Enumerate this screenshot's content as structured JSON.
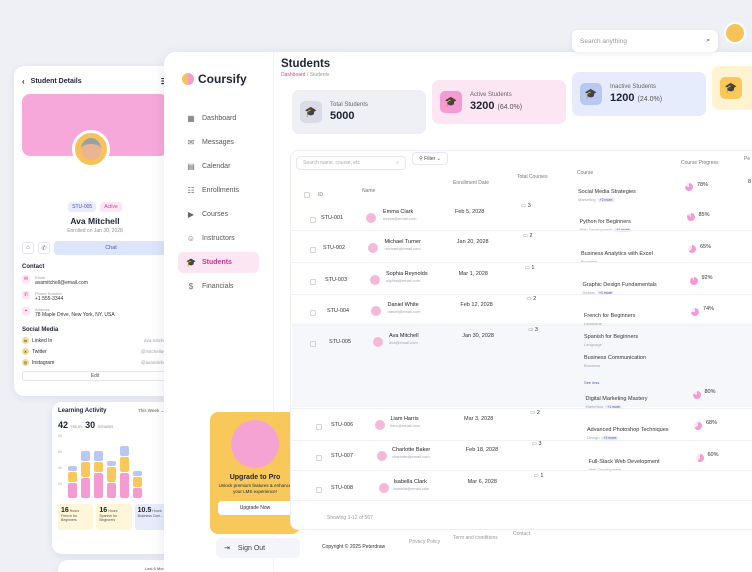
{
  "details": {
    "title": "Student Details",
    "badge_id": "STU-005",
    "badge_status": "Active",
    "name": "Ava Mitchell",
    "enrolled": "Enrolled on Jan 30, 2028",
    "chat": "Chat",
    "contact_title": "Contact",
    "contact": [
      {
        "label": "Email",
        "value": "avamitchell@email.com"
      },
      {
        "label": "Phone Number",
        "value": "+1 555-3344"
      },
      {
        "label": "Address",
        "value": "78 Maple Drive, New York, NY, USA"
      }
    ],
    "social_title": "Social Media",
    "social": [
      {
        "name": "Linked In",
        "handle": "ava-mitchell"
      },
      {
        "name": "Twitter",
        "handle": "@mitchellava"
      },
      {
        "name": "Instagram",
        "handle": "@avamitchell"
      }
    ],
    "edit": "Edit"
  },
  "activity": {
    "title": "Learning Activity",
    "period": "This Week",
    "hours": "42",
    "hours_unit": "Hours",
    "minutes": "30",
    "minutes_unit": "minutes",
    "yticks": [
      "8h",
      "6h",
      "4h",
      "2h"
    ],
    "bars": [
      [
        3,
        2,
        1
      ],
      [
        4,
        3,
        2
      ],
      [
        5,
        2,
        2
      ],
      [
        3,
        3,
        1
      ],
      [
        5,
        3,
        2
      ],
      [
        2,
        2,
        1
      ]
    ],
    "stats": [
      {
        "value": "16",
        "unit": "Hours",
        "label": "French for Beginners"
      },
      {
        "value": "16",
        "unit": "Hours",
        "label": "Spanish for Beginners"
      },
      {
        "value": "10.5",
        "unit": "Hours",
        "label": "Business Com..."
      }
    ],
    "bottom_period": "Last 6 Months"
  },
  "app": {
    "name": "Coursify",
    "nav": [
      "Dashboard",
      "Messages",
      "Calendar",
      "Enrollments",
      "Courses",
      "Instructors",
      "Students",
      "Financials"
    ],
    "active_nav": "Students",
    "upgrade_title": "Upgrade to Pro",
    "upgrade_text": "Unlock premium features & enhance your LMS experience!",
    "upgrade_button": "Upgrade Now",
    "signout": "Sign Out",
    "search_placeholder": "Search anything"
  },
  "page": {
    "title": "Students",
    "crumb1": "Dashboard",
    "crumb2": "Students"
  },
  "stats": [
    {
      "label": "Total Students",
      "value": "5000",
      "pct": ""
    },
    {
      "label": "Active Students",
      "value": "3200",
      "pct": "(64.0%)"
    },
    {
      "label": "Inactive Students",
      "value": "1200",
      "pct": "(24.0%)"
    }
  ],
  "table": {
    "search_placeholder": "Search name, course, etc",
    "filter": "Filter",
    "headers": [
      "ID",
      "Name",
      "Enrollment Date",
      "Total Courses",
      "Course",
      "Course Progress",
      "Pe"
    ],
    "rows": [
      {
        "id": "STU-001",
        "name": "Emma Clark",
        "email": "emma@email.com",
        "date": "Feb 5, 2028",
        "total": "3",
        "courses": [
          {
            "t": "Social Media Strategies",
            "c": "Marketing",
            "m": "+2 more"
          }
        ],
        "progress": "78%",
        "pe": "8"
      },
      {
        "id": "STU-002",
        "name": "Michael Turner",
        "email": "michael@email.com",
        "date": "Jan 20, 2028",
        "total": "2",
        "courses": [
          {
            "t": "Python for Beginners",
            "c": "Web Development",
            "m": "+1 more"
          }
        ],
        "progress": "85%",
        "pe": ""
      },
      {
        "id": "STU-003",
        "name": "Sophia Reynolds",
        "email": "sophia@email.com",
        "date": "Mar 1, 2028",
        "total": "1",
        "courses": [
          {
            "t": "Business Analytics with Excel",
            "c": "Business",
            "m": ""
          }
        ],
        "progress": "65%",
        "pe": ""
      },
      {
        "id": "STU-004",
        "name": "Daniel White",
        "email": "daniel@email.com",
        "date": "Feb 12, 2028",
        "total": "2",
        "courses": [
          {
            "t": "Graphic Design Fundamentals",
            "c": "Design",
            "m": "+1 more"
          }
        ],
        "progress": "92%",
        "pe": ""
      },
      {
        "id": "STU-005",
        "name": "Ava Mitchell",
        "email": "ava@email.com",
        "date": "Jan 30, 2028",
        "total": "3",
        "courses": [
          {
            "t": "French for Beginners",
            "c": "Language",
            "m": ""
          },
          {
            "t": "Spanish for Beginners",
            "c": "Language",
            "m": ""
          },
          {
            "t": "Business Communication",
            "c": "Business",
            "m": ""
          }
        ],
        "see_less": "See less",
        "progress": "74%",
        "pe": ""
      },
      {
        "id": "STU-006",
        "name": "Liam Harris",
        "email": "liam@email.com",
        "date": "Mar 3, 2028",
        "total": "2",
        "courses": [
          {
            "t": "Digital Marketing Mastery",
            "c": "Marketing",
            "m": "+1 more"
          }
        ],
        "progress": "80%",
        "pe": ""
      },
      {
        "id": "STU-007",
        "name": "Charlotte Baker",
        "email": "charlotte@email.com",
        "date": "Feb 18, 2028",
        "total": "3",
        "courses": [
          {
            "t": "Advanced Photoshop Techniques",
            "c": "Design",
            "m": "+2 more"
          }
        ],
        "progress": "68%",
        "pe": ""
      },
      {
        "id": "STU-008",
        "name": "Isabella Clark",
        "email": "isabella@email.com",
        "date": "Mar 6, 2028",
        "total": "1",
        "courses": [
          {
            "t": "Full-Stack Web Development",
            "c": "Web Development",
            "m": ""
          }
        ],
        "progress": "60%",
        "pe": ""
      }
    ],
    "showing": "Showing 1-12 of 567"
  },
  "footer": {
    "copyright": "Copyright © 2025 Peterdraw",
    "links": [
      "Privacy Policy",
      "Term and conditions",
      "Contact"
    ]
  },
  "colors": {
    "accent": "#f59bd1",
    "yellow": "#f8c85b",
    "blue": "#dce5fb"
  }
}
